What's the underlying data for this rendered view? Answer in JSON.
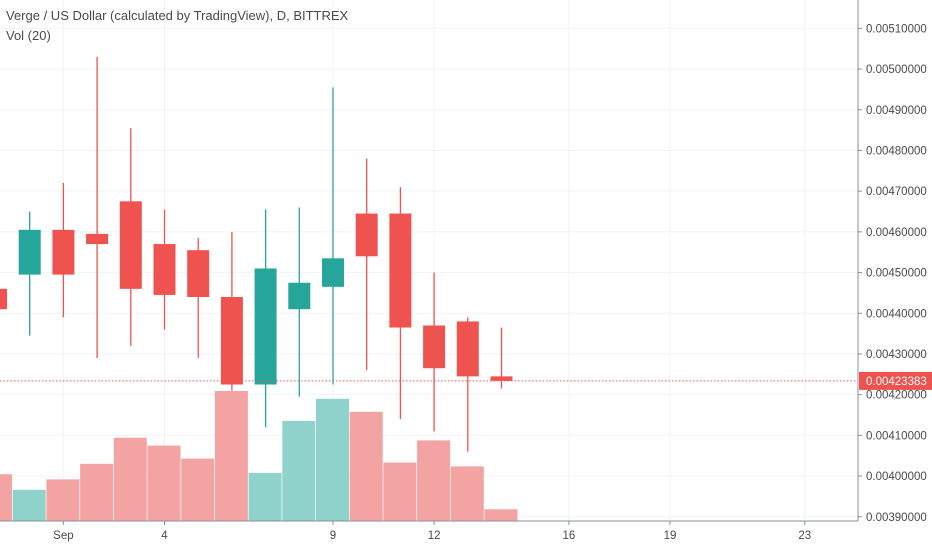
{
  "header": {
    "title": "Verge / US Dollar (calculated by TradingView), D, BITTREX",
    "volume_label": "Vol (20)"
  },
  "colors": {
    "up": "#26a69a",
    "down": "#ef5350",
    "vol_up": "#8fd2cb",
    "vol_down": "#f4a3a3",
    "grid": "#f0f3f6",
    "axis_text": "#4a4a4a",
    "last_price": "#ef5350"
  },
  "chart_data": {
    "type": "candlestick",
    "title": "Verge / US Dollar (calculated by TradingView), D, BITTREX",
    "x_axis_ticks": [
      "Sep",
      "4",
      "9",
      "12",
      "16",
      "19",
      "23"
    ],
    "y_axis_ticks": [
      "0.00390000",
      "0.00400000",
      "0.00410000",
      "0.00420000",
      "0.00430000",
      "0.00440000",
      "0.00450000",
      "0.00460000",
      "0.00470000",
      "0.00480000",
      "0.00490000",
      "0.00500000",
      "0.00510000"
    ],
    "ylim": [
      0.00387,
      0.00515
    ],
    "last_price_label": "0.00423383",
    "last_price": 0.00423383,
    "candles": [
      {
        "day": "Aug 30",
        "open": 0.00446,
        "high": 0.00446,
        "low": 0.00441,
        "close": 0.00441
      },
      {
        "day": "Aug 31",
        "open": 0.004495,
        "high": 0.00465,
        "low": 0.004345,
        "close": 0.004605
      },
      {
        "day": "Sep 1",
        "open": 0.004605,
        "high": 0.00472,
        "low": 0.00439,
        "close": 0.004495
      },
      {
        "day": "Sep 2",
        "open": 0.004595,
        "high": 0.00503,
        "low": 0.00429,
        "close": 0.00457
      },
      {
        "day": "Sep 3",
        "open": 0.004675,
        "high": 0.004855,
        "low": 0.00432,
        "close": 0.00446
      },
      {
        "day": "Sep 4",
        "open": 0.00457,
        "high": 0.004655,
        "low": 0.00436,
        "close": 0.004445
      },
      {
        "day": "Sep 5",
        "open": 0.004555,
        "high": 0.004585,
        "low": 0.00429,
        "close": 0.00444
      },
      {
        "day": "Sep 6",
        "open": 0.00444,
        "high": 0.0046,
        "low": 0.00421,
        "close": 0.004225
      },
      {
        "day": "Sep 7",
        "open": 0.004225,
        "high": 0.004655,
        "low": 0.00412,
        "close": 0.00451
      },
      {
        "day": "Sep 8",
        "open": 0.00441,
        "high": 0.00466,
        "low": 0.004195,
        "close": 0.004475
      },
      {
        "day": "Sep 9",
        "open": 0.004465,
        "high": 0.004955,
        "low": 0.004225,
        "close": 0.004535
      },
      {
        "day": "Sep 10",
        "open": 0.004645,
        "high": 0.00478,
        "low": 0.00426,
        "close": 0.00454
      },
      {
        "day": "Sep 11",
        "open": 0.004645,
        "high": 0.00471,
        "low": 0.00414,
        "close": 0.004365
      },
      {
        "day": "Sep 12",
        "open": 0.00437,
        "high": 0.0045,
        "low": 0.00411,
        "close": 0.004265
      },
      {
        "day": "Sep 13",
        "open": 0.00438,
        "high": 0.00439,
        "low": 0.00406,
        "close": 0.004245
      },
      {
        "day": "Sep 14",
        "open": 0.004245,
        "high": 0.004365,
        "low": 0.004215,
        "close": 0.004234
      }
    ],
    "volume": {
      "series": "Vol (20)",
      "values": [
        0.36,
        0.24,
        0.32,
        0.44,
        0.64,
        0.58,
        0.48,
        1.0,
        0.37,
        0.77,
        0.94,
        0.84,
        0.45,
        0.62,
        0.42,
        0.09
      ]
    }
  }
}
